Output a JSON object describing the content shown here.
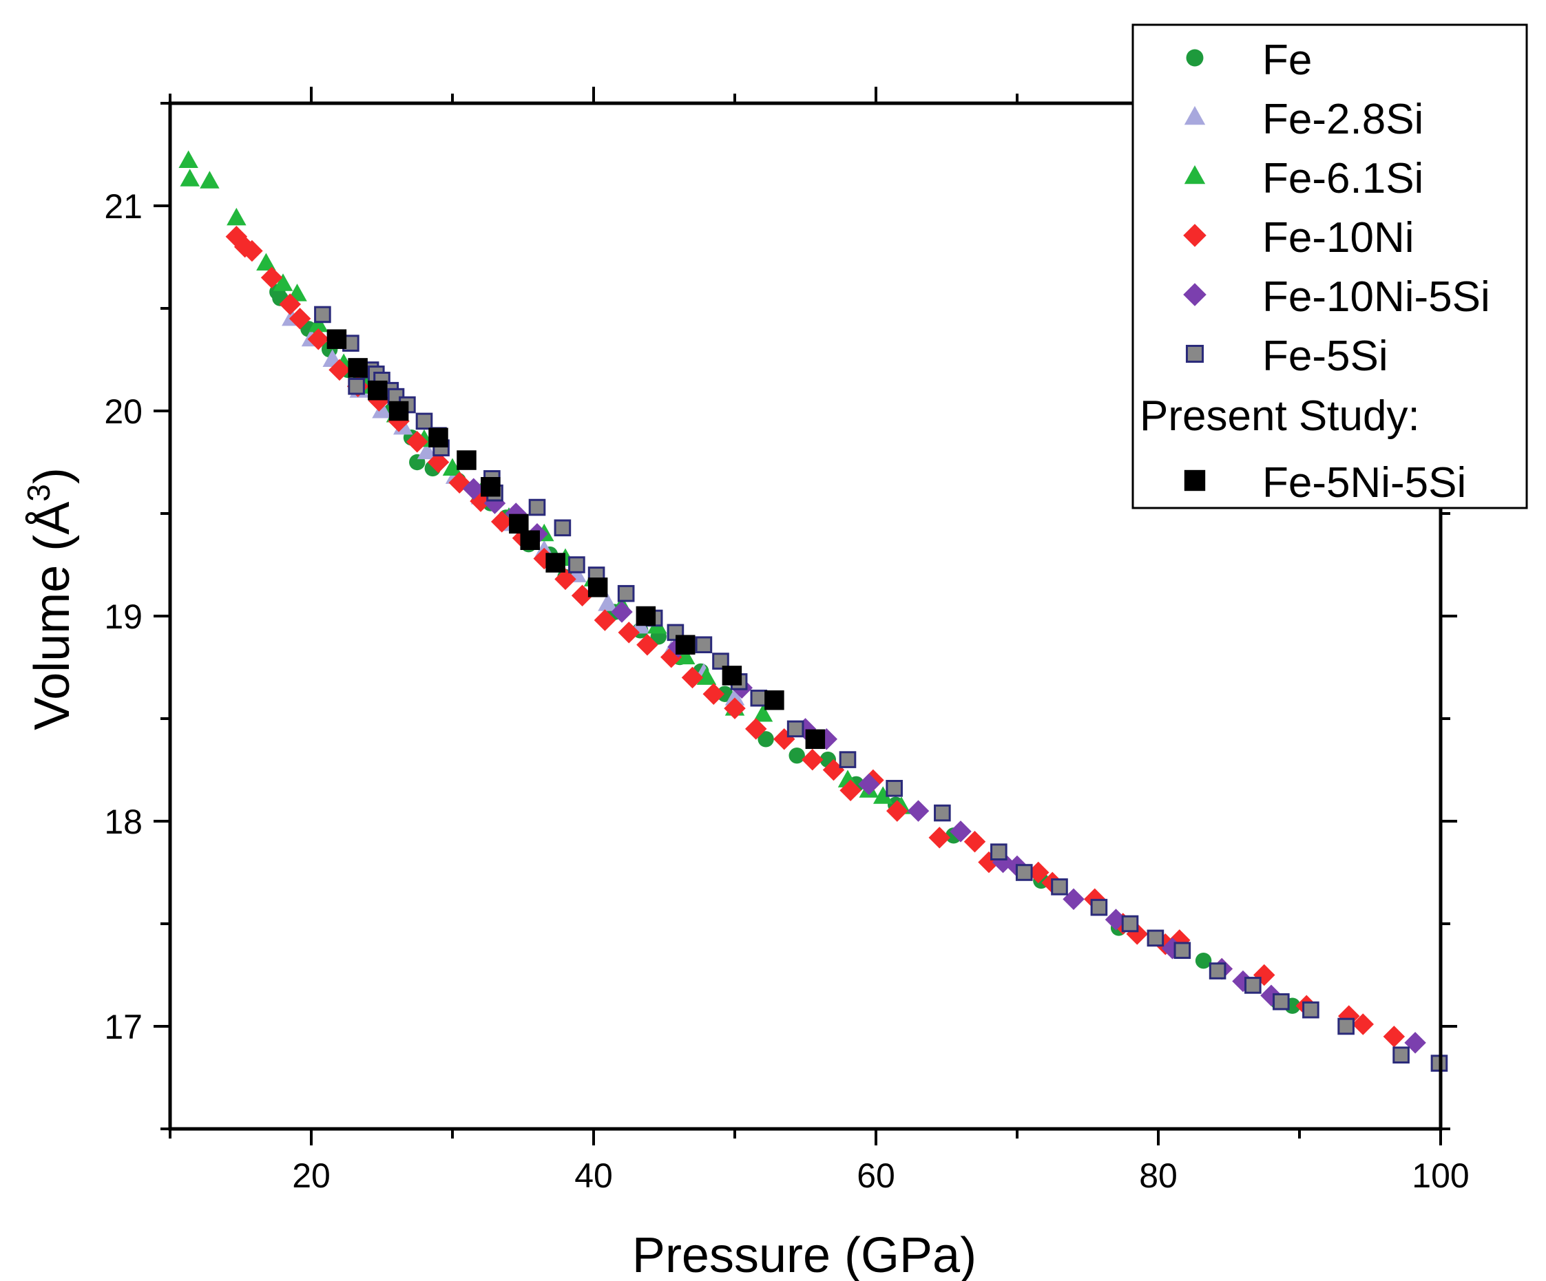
{
  "chart_data": {
    "type": "scatter",
    "xlabel": "Pressure (GPa)",
    "ylabel": "Volume (Å³)",
    "ylabel_base": "Volume (Å",
    "ylabel_sup": "3",
    "ylabel_close": ")",
    "xlim": [
      10,
      100
    ],
    "ylim": [
      16.5,
      21.5
    ],
    "xticks": [
      20,
      40,
      60,
      80,
      100
    ],
    "xtick_labels": [
      "20",
      "40",
      "60",
      "80",
      "100"
    ],
    "yticks": [
      17,
      18,
      19,
      20,
      21
    ],
    "ytick_labels": [
      "17",
      "18",
      "19",
      "20",
      "21"
    ],
    "grid": false,
    "legend_position": "top-right",
    "legend_group_label": "Present Study:",
    "series": [
      {
        "name": "Fe",
        "marker": "circle",
        "color": "#1e9a3c",
        "x": [
          17.6,
          17.8,
          19.8,
          21.3,
          22.6,
          23.5,
          24.5,
          25.7,
          27.1,
          27.5,
          28.6,
          30.4,
          32.7,
          33.8,
          35.4,
          36.9,
          38.0,
          41.5,
          43.3,
          44.6,
          46.1,
          47.6,
          49.3,
          52.2,
          54.4,
          56.6,
          58.6,
          61.4,
          65.5,
          71.7,
          77.2,
          83.2,
          88.5,
          89.5
        ],
        "y": [
          20.58,
          20.55,
          20.4,
          20.3,
          20.2,
          20.15,
          20.1,
          20.0,
          19.87,
          19.75,
          19.72,
          19.66,
          19.55,
          19.48,
          19.35,
          19.3,
          19.19,
          19.02,
          18.93,
          18.9,
          18.8,
          18.73,
          18.62,
          18.4,
          18.32,
          18.3,
          18.18,
          18.08,
          17.93,
          17.71,
          17.48,
          17.32,
          17.12,
          17.1
        ]
      },
      {
        "name": "Fe-2.8Si",
        "marker": "triangle",
        "color": "#a8a8dd",
        "x": [
          18.6,
          20.0,
          21.5,
          23.4,
          25.0,
          26.5,
          28.2,
          30.2,
          32.0,
          34.0,
          36.5,
          38.8,
          41.0,
          43.3,
          45.5,
          47.8,
          50.0
        ],
        "y": [
          20.45,
          20.35,
          20.25,
          20.1,
          20.0,
          19.92,
          19.8,
          19.68,
          19.58,
          19.45,
          19.32,
          19.2,
          19.06,
          18.95,
          18.83,
          18.72,
          18.6
        ]
      },
      {
        "name": "Fe-6.1Si",
        "marker": "triangle",
        "color": "#22b73c",
        "x": [
          11.3,
          11.4,
          12.8,
          14.7,
          16.8,
          18.0,
          19.0,
          20.5,
          22.3,
          24.0,
          26.0,
          28.0,
          30.0,
          32.0,
          34.0,
          36.5,
          38.0,
          40.0,
          42.0,
          44.5,
          46.5,
          48.0,
          50.0,
          52.0,
          58.0,
          59.5,
          60.5,
          61.8
        ],
        "y": [
          21.22,
          21.13,
          21.12,
          20.94,
          20.72,
          20.62,
          20.57,
          20.42,
          20.23,
          20.12,
          19.98,
          19.86,
          19.72,
          19.6,
          19.48,
          19.4,
          19.28,
          19.18,
          19.05,
          18.95,
          18.8,
          18.7,
          18.55,
          18.52,
          18.2,
          18.15,
          18.12,
          18.07
        ]
      },
      {
        "name": "Fe-10Ni",
        "marker": "diamond",
        "color": "#f52a2a",
        "x": [
          14.7,
          15.3,
          15.8,
          17.2,
          18.5,
          19.2,
          20.5,
          22.0,
          23.3,
          24.8,
          26.2,
          27.5,
          29.0,
          30.5,
          32.0,
          33.5,
          35.0,
          36.5,
          38.0,
          39.2,
          40.8,
          42.5,
          43.8,
          45.5,
          47.0,
          48.5,
          50.0,
          51.5,
          53.5,
          55.5,
          57.0,
          58.2,
          59.8,
          61.5,
          64.5,
          67.0,
          68.0,
          71.5,
          72.5,
          75.5,
          77.5,
          78.5,
          80.5,
          81.5,
          84.5,
          87.5,
          90.5,
          93.5,
          94.5,
          96.7
        ],
        "y": [
          20.85,
          20.8,
          20.78,
          20.65,
          20.52,
          20.45,
          20.35,
          20.2,
          20.12,
          20.05,
          19.95,
          19.85,
          19.75,
          19.65,
          19.56,
          19.46,
          19.38,
          19.28,
          19.18,
          19.1,
          18.98,
          18.92,
          18.86,
          18.8,
          18.7,
          18.62,
          18.55,
          18.45,
          18.4,
          18.3,
          18.25,
          18.15,
          18.2,
          18.05,
          17.92,
          17.9,
          17.8,
          17.75,
          17.7,
          17.62,
          17.5,
          17.45,
          17.4,
          17.42,
          17.28,
          17.25,
          17.1,
          17.05,
          17.01,
          16.95
        ]
      },
      {
        "name": "Fe-10Ni-5Si",
        "marker": "diamond",
        "color": "#7b3fae",
        "x": [
          31.5,
          33.0,
          34.5,
          36.0,
          42.0,
          46.0,
          50.5,
          55.0,
          56.5,
          59.5,
          63.0,
          66.0,
          69.0,
          70.0,
          74.0,
          77.0,
          81.0,
          84.5,
          86.0,
          88.0,
          98.2
        ],
        "y": [
          19.62,
          19.55,
          19.5,
          19.4,
          19.02,
          18.85,
          18.65,
          18.45,
          18.4,
          18.18,
          18.05,
          17.95,
          17.8,
          17.78,
          17.62,
          17.52,
          17.38,
          17.28,
          17.22,
          17.15,
          16.92
        ]
      },
      {
        "name": "Fe-5Si",
        "marker": "square",
        "color": "#888888",
        "x": [
          20.8,
          22.8,
          23.2,
          24.2,
          24.6,
          25.0,
          25.6,
          26.0,
          26.8,
          28.0,
          29.0,
          29.2,
          32.8,
          33.0,
          36.0,
          37.8,
          38.8,
          40.2,
          42.3,
          44.3,
          45.8,
          47.8,
          49.0,
          50.3,
          51.7,
          54.3,
          58.0,
          61.3,
          64.7,
          68.7,
          70.5,
          73.0,
          75.8,
          78.0,
          79.8,
          81.7,
          84.2,
          86.7,
          88.7,
          90.8,
          93.3,
          97.2,
          99.9
        ],
        "y": [
          20.47,
          20.33,
          20.12,
          20.2,
          20.18,
          20.15,
          20.1,
          20.07,
          20.03,
          19.95,
          19.88,
          19.82,
          19.67,
          19.6,
          19.53,
          19.43,
          19.25,
          19.2,
          19.11,
          18.99,
          18.92,
          18.86,
          18.78,
          18.68,
          18.6,
          18.45,
          18.3,
          18.16,
          18.04,
          17.85,
          17.75,
          17.68,
          17.58,
          17.5,
          17.43,
          17.37,
          17.27,
          17.2,
          17.12,
          17.08,
          17.0,
          16.86,
          16.82
        ]
      },
      {
        "name": "Fe-5Ni-5Si",
        "marker": "square",
        "color": "#000000",
        "x": [
          21.8,
          23.3,
          24.7,
          26.2,
          29.0,
          31.0,
          32.7,
          34.7,
          35.5,
          37.3,
          40.3,
          43.7,
          46.5,
          49.8,
          52.8,
          55.7
        ],
        "y": [
          20.35,
          20.21,
          20.1,
          20.0,
          19.87,
          19.76,
          19.63,
          19.45,
          19.37,
          19.26,
          19.14,
          19.0,
          18.86,
          18.71,
          18.59,
          18.4
        ]
      }
    ]
  }
}
